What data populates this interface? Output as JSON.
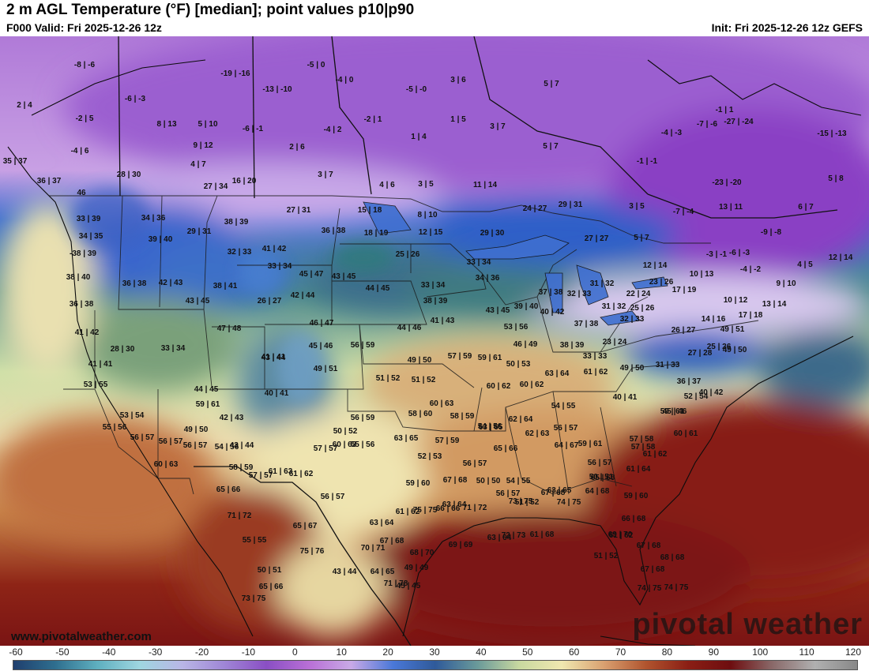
{
  "header": {
    "title": "2 m AGL Temperature (°F) [median]; point values p10|p90",
    "valid": "F000 Valid: Fri 2025-12-26 12z",
    "init": "Init: Fri 2025-12-26 12z GEFS"
  },
  "footer": {
    "site_url": "www.pivotalweather.com",
    "watermark": "pivotal weather"
  },
  "colorbar": {
    "ticks": [
      "-60",
      "-50",
      "-40",
      "-30",
      "-20",
      "-10",
      "0",
      "10",
      "20",
      "30",
      "40",
      "50",
      "60",
      "70",
      "80",
      "90",
      "100",
      "110",
      "120"
    ],
    "colors": [
      "#1f3f6e",
      "#2f6f8f",
      "#5fb0c0",
      "#9fd6e0",
      "#b9b6e6",
      "#9f86d6",
      "#8a4fc4",
      "#b86fd6",
      "#c9a9e6",
      "#4a78d8",
      "#2f5a9a",
      "#6a9a9a",
      "#c9d9a0",
      "#f0e8b0",
      "#d9a070",
      "#b0542e",
      "#8a1e14",
      "#6e0e10",
      "#8a6a6a",
      "#b0b0b0",
      "#888888"
    ]
  },
  "point_values": [
    "-8 | -6",
    "2 | 4",
    "-6 | -3",
    "-2 | 5",
    "-4 | 6",
    "35 | 37",
    "8 | 13",
    "5 | 10",
    "-19 | -16",
    "-6 | -1",
    "-13 | -10",
    "-5 | 0",
    "-4 | 0",
    "-5 | -0",
    "3 | 6",
    "5 | 7",
    "9 | 12",
    "2 | 6",
    "-4 | 2",
    "-2 | 1",
    "1 | 4",
    "1 | 5",
    "3 | 7",
    "-1 | 1",
    "-7 | -6",
    "-27 | -24",
    "-15 | -13",
    "28 | 30",
    "4 | 7",
    "5 | 7",
    "-4 | -3",
    "-1 | -1",
    "36 | 37",
    "27 | 34",
    "16 | 20",
    "3 | 7",
    "4 | 6",
    "3 | 5",
    "11 | 14",
    "-23 | -20",
    "5 | 8",
    "46",
    "33 | 39",
    "27 | 31",
    "15 | 18",
    "8 | 10",
    "24 | 27",
    "29 | 31",
    "3 | 5",
    "-7 | -4",
    "13 | 11",
    "6 | 7",
    "34 | 36",
    "29 | 31",
    "38 | 39",
    "36 | 38",
    "18 | 19",
    "12 | 15",
    "29 | 30",
    "27 | 27",
    "5 | 7",
    "-9 | -8",
    "34 | 35",
    "39 | 40",
    "41 | 42",
    "25 | 26",
    "33 | 34",
    "-3 | -1",
    "-6 | -3",
    "12 | 14",
    "-38 | 39",
    "32 | 33",
    "33 | 34",
    "45 | 47",
    "43 | 45",
    "34 | 36",
    "12 | 14",
    "4 | 5",
    "-4 | -2",
    "38 | 40",
    "36 | 38",
    "42 | 43",
    "38 | 41",
    "44 | 45",
    "33 | 34",
    "37 | 38",
    "32 | 33",
    "31 | 32",
    "22 | 24",
    "23 | 26",
    "17 | 19",
    "10 | 13",
    "9 | 10",
    "36 | 38",
    "43 | 45",
    "26 | 27",
    "42 | 44",
    "38 | 39",
    "43 | 45",
    "39 | 40",
    "40 | 42",
    "31 | 32",
    "25 | 26",
    "10 | 12",
    "13 | 14",
    "41 | 42",
    "47 | 48",
    "46 | 47",
    "44 | 46",
    "41 | 43",
    "53 | 56",
    "37 | 38",
    "32 | 33",
    "14 | 16",
    "17 | 18",
    "28 | 30",
    "33 | 34",
    "41 | 41",
    "45 | 46",
    "56 | 59",
    "46 | 49",
    "38 | 39",
    "23 | 24",
    "26 | 27",
    "49 | 51",
    "41 | 41",
    "43 | 44",
    "49 | 51",
    "49 | 50",
    "57 | 59",
    "59 | 61",
    "50 | 53",
    "33 | 33",
    "27 | 28",
    "25 | 26",
    "49 | 50",
    "51 | 52",
    "51 | 52",
    "63 | 64",
    "61 | 62",
    "49 | 50",
    "31 | 33",
    "53 | 55",
    "44 | 45",
    "40 | 41",
    "60 | 62",
    "60 | 62",
    "36 | 37",
    "52 | 54",
    "59 | 61",
    "60 | 63",
    "54 | 55",
    "40 | 41",
    "40 | 42",
    "53 | 54",
    "42 | 43",
    "56 | 59",
    "58 | 60",
    "58 | 59",
    "62 | 64",
    "59 | 61",
    "45 | 46",
    "55 | 56",
    "43 | 44",
    "50 | 52",
    "63 | 65",
    "57 | 59",
    "54 | 56",
    "56 | 57",
    "57 | 58",
    "60 | 61",
    "49 | 50",
    "54 | 56",
    "60 | 63",
    "63 | 65",
    "62 | 63",
    "59 | 61",
    "56 | 57",
    "56 | 57",
    "56 | 57",
    "57 | 57",
    "55 | 56",
    "65 | 66",
    "64 | 67",
    "56 | 57",
    "57 | 58",
    "61 | 62",
    "50 | 51",
    "52 | 53",
    "56 | 57",
    "61 | 64",
    "60 | 63",
    "58 | 59",
    "57 | 57",
    "61 | 62",
    "50 | 50",
    "54 | 55",
    "63 | 65",
    "65 | 68",
    "65 | 66",
    "61 | 63",
    "56 | 57",
    "59 | 60",
    "67 | 68",
    "56 | 57",
    "67 | 68",
    "64 | 68",
    "59 | 60",
    "63 | 64",
    "65 | 67",
    "66 | 66",
    "73 | 75",
    "74 | 75",
    "71 | 72",
    "63 | 64",
    "61 | 62",
    "71 | 72",
    "51 | 52",
    "66 | 68",
    "69 | 70",
    "75 | 75",
    "63 | 64",
    "72 | 73",
    "61 | 68",
    "61 | 62",
    "67 | 68",
    "70 | 71",
    "55 | 55",
    "51 | 52",
    "67 | 68",
    "75 | 76",
    "68 | 70",
    "67 | 68",
    "69 | 69",
    "68 | 68",
    "74 | 75",
    "50 | 51",
    "49 | 49",
    "71 | 78",
    "74 | 75",
    "43 | 44",
    "64 | 65",
    "65 | 66",
    "45 | 45",
    "73 | 75"
  ]
}
